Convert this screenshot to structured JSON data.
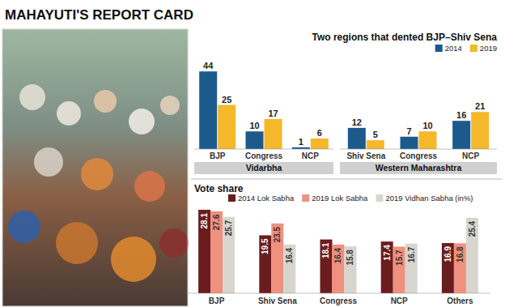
{
  "title": "MAHAYUTI'S REPORT CARD",
  "chart_data": [
    {
      "type": "bar",
      "title": "Two regions that dented BJP–Shiv Sena",
      "xlabel": "Vidarbha",
      "categories": [
        "BJP",
        "Congress",
        "NCP"
      ],
      "series": [
        {
          "name": "2014",
          "color": "#1d5a8c",
          "values": [
            44,
            10,
            1
          ]
        },
        {
          "name": "2019",
          "color": "#f4b82a",
          "values": [
            25,
            17,
            6
          ]
        }
      ],
      "ylim": [
        0,
        45
      ],
      "data_labels": true,
      "tick_labels": "x",
      "legend": "upper right"
    },
    {
      "type": "bar",
      "xlabel": "Western Maharashtra",
      "categories": [
        "Shiv Sena",
        "Congress",
        "NCP"
      ],
      "series": [
        {
          "color": "#1d5a8c",
          "values": [
            12,
            7,
            16
          ]
        },
        {
          "color": "#f4b82a",
          "values": [
            5,
            10,
            21
          ]
        }
      ],
      "ylim": [
        0,
        45
      ],
      "data_labels": true,
      "tick_labels": "x"
    },
    {
      "type": "bar",
      "title": "Vote share",
      "categories": [
        "BJP",
        "Shiv Sena",
        "Congress",
        "NCP",
        "Others"
      ],
      "series": [
        {
          "name": "2014 Lok Sabha",
          "color": "#6b1d1d",
          "values": [
            28.1,
            19.5,
            18.1,
            17.4,
            16.9
          ]
        },
        {
          "name": "2019 Lok Sabha",
          "color": "#f0907f",
          "values": [
            27.6,
            23.5,
            16.4,
            15.7,
            16.8
          ]
        },
        {
          "name": "2019 Vidhan Sabha (in%)",
          "color": "#d8d5cf",
          "values": [
            25.7,
            16.4,
            15.8,
            16.7,
            25.4
          ]
        }
      ],
      "ylim": [
        0,
        30
      ],
      "data_labels": true,
      "tick_labels": "x",
      "legend": "upper left"
    }
  ]
}
